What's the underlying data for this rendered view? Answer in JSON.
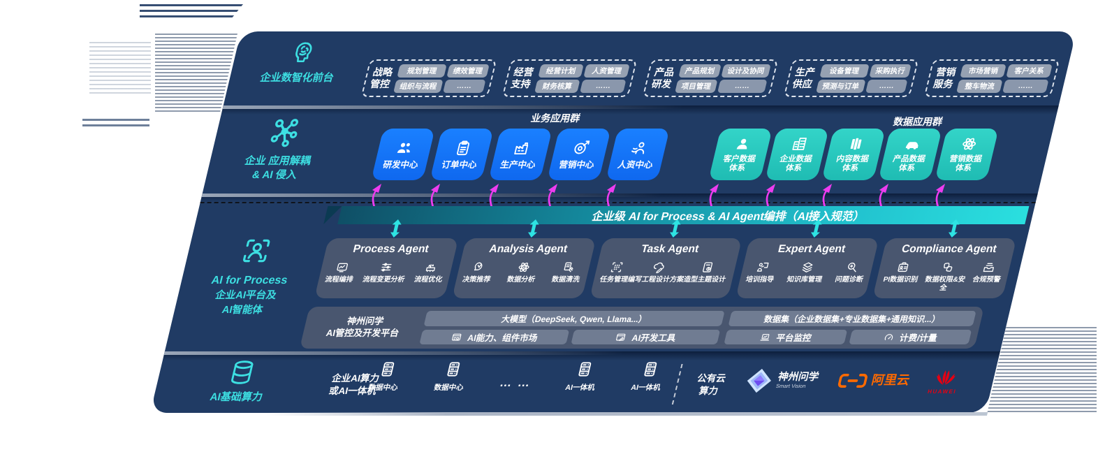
{
  "colors": {
    "panel": "#203b64",
    "accent_blue": "#1578f2",
    "accent_teal": "#2fd0c5",
    "cyan_label": "#3ddfe2",
    "magenta_arrow": "#ee3cf0",
    "cyan_arrow": "#2ee3e3",
    "bar_teal": "#22c3cf",
    "card_gray": "#4d5970",
    "alibaba_orange": "#ff6a00",
    "huawei_red": "#e60012"
  },
  "front_office": {
    "icon": "brain-icon",
    "label": "企业数智化前台",
    "groups": [
      {
        "name_lines": [
          "战略",
          "管控"
        ],
        "chips": [
          "规划管理",
          "绩效管理",
          "组织与流程",
          "……"
        ]
      },
      {
        "name_lines": [
          "经营",
          "支持"
        ],
        "chips": [
          "经营计划",
          "人资管理",
          "财务核算",
          "……"
        ]
      },
      {
        "name_lines": [
          "产品",
          "研发"
        ],
        "chips": [
          "产品规划",
          "设计及协同",
          "项目管理",
          "……"
        ]
      },
      {
        "name_lines": [
          "生产",
          "供应"
        ],
        "chips": [
          "设备管理",
          "采购执行",
          "预测与订单",
          "……"
        ]
      },
      {
        "name_lines": [
          "营销",
          "服务"
        ],
        "chips": [
          "市场营销",
          "客户关系",
          "整车物流",
          "……"
        ]
      }
    ]
  },
  "decouple_layer": {
    "icon": "molecule-icon",
    "label_lines": [
      "企业 应用解耦",
      "& AI 侵入"
    ],
    "business_group_title": "业务应用群",
    "data_group_title": "数据应用群",
    "business_apps": [
      {
        "label": "研发中心",
        "icon": "people-icon"
      },
      {
        "label": "订单中心",
        "icon": "clipboard-icon"
      },
      {
        "label": "生产中心",
        "icon": "factory-icon"
      },
      {
        "label": "营销中心",
        "icon": "target-icon"
      },
      {
        "label": "人资中心",
        "icon": "hr-icon"
      }
    ],
    "data_apps": [
      {
        "label_lines": [
          "客户数据",
          "体系"
        ],
        "icon": "user-icon"
      },
      {
        "label_lines": [
          "企业数据",
          "体系"
        ],
        "icon": "building-icon"
      },
      {
        "label_lines": [
          "内容数据",
          "体系"
        ],
        "icon": "books-icon"
      },
      {
        "label_lines": [
          "产品数据",
          "体系"
        ],
        "icon": "car-icon"
      },
      {
        "label_lines": [
          "营销数据",
          "体系"
        ],
        "icon": "atom-icon"
      }
    ]
  },
  "ai_layer": {
    "icon": "person-scan-icon",
    "label_lines": [
      "AI for Process",
      "企业AI平台及",
      "AI智能体"
    ],
    "orchestration_bar": "企业级 AI for Process & AI Agent编排（AI接入规范）",
    "agents": [
      {
        "title": "Process Agent",
        "items": [
          {
            "label": "流程编排",
            "icon": "flow-icon"
          },
          {
            "label": "流程变更分析",
            "icon": "sliders-icon"
          },
          {
            "label": "流程优化",
            "icon": "machine-icon"
          }
        ]
      },
      {
        "title": "Analysis Agent",
        "items": [
          {
            "label": "决策推荐",
            "icon": "brain-circuit-icon"
          },
          {
            "label": "数据分析",
            "icon": "atom-icon"
          },
          {
            "label": "数据清洗",
            "icon": "clean-icon"
          }
        ]
      },
      {
        "title": "Task Agent",
        "items": [
          {
            "label": "任务管理",
            "icon": "task-grid-icon"
          },
          {
            "label": "编写工程设计方案",
            "icon": "cloud-pen-icon"
          },
          {
            "label": "造型主题设计",
            "icon": "design-doc-icon"
          }
        ]
      },
      {
        "title": "Expert Agent",
        "items": [
          {
            "label": "培训指导",
            "icon": "training-icon"
          },
          {
            "label": "知识库管理",
            "icon": "layers-icon"
          },
          {
            "label": "问题诊断",
            "icon": "diagnose-icon"
          }
        ]
      },
      {
        "title": "Compliance Agent",
        "items": [
          {
            "label": "PI数据识别",
            "icon": "id-card-icon"
          },
          {
            "label": "数据权限&安全",
            "icon": "lock-link-icon",
            "wrap": true
          },
          {
            "label": "合规预警",
            "icon": "alert-mail-icon"
          }
        ]
      }
    ],
    "platform": {
      "label_lines": [
        "神州问学",
        "AI管控及开发平台"
      ],
      "model_bar": "大模型（DeepSeek, Qwen, Llama...）",
      "left_cells": [
        {
          "label": "AI能力、组件市场",
          "icon": "market-icon"
        },
        {
          "label": "AI开发工具",
          "icon": "devtools-icon"
        }
      ],
      "dataset_bar": "数据集（企业数据集+专业数据集+通用知识...）",
      "right_cells": [
        {
          "label": "平台监控",
          "icon": "monitor-icon"
        },
        {
          "label": "计费/计量",
          "icon": "gauge-icon"
        }
      ]
    }
  },
  "infra_layer": {
    "icon": "database-icon",
    "label": "AI基础算力",
    "compute_label_lines": [
      "企业AI算力",
      "或AI一体机"
    ],
    "nodes": [
      {
        "label": "数据中心",
        "icon": "server-icon"
      },
      {
        "label": "数据中心",
        "icon": "server-icon"
      },
      {
        "label": "… …",
        "icon": ""
      },
      {
        "label": "AI一体机",
        "icon": "server-icon"
      },
      {
        "label": "AI一体机",
        "icon": "server-icon"
      }
    ],
    "public_cloud_lines": [
      "公有云",
      "算力"
    ],
    "vendors": [
      {
        "name": "神州问学",
        "sub": "Smart Vision",
        "icon": "smartvision-logo"
      },
      {
        "name": "阿里云",
        "icon": "alicloud-logo"
      },
      {
        "name": "HUAWEI",
        "icon": "huawei-logo"
      }
    ]
  }
}
